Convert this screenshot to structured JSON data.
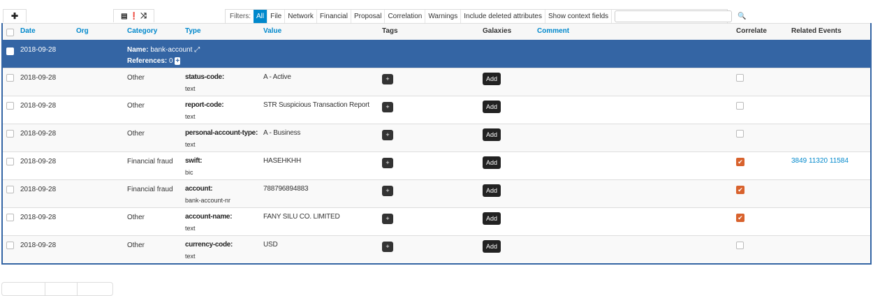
{
  "toolbar": {
    "add_icon": "plus-icon",
    "icons": [
      "list-icon",
      "exclamation-circle-icon",
      "random-icon"
    ]
  },
  "filters": {
    "label": "Filters:",
    "items": [
      "All",
      "File",
      "Network",
      "Financial",
      "Proposal",
      "Correlation",
      "Warnings",
      "Include deleted attributes",
      "Show context fields"
    ],
    "active": "All",
    "search_value": ""
  },
  "columns": {
    "date": "Date",
    "org": "Org",
    "category": "Category",
    "type": "Type",
    "value": "Value",
    "tags": "Tags",
    "galaxies": "Galaxies",
    "comment": "Comment",
    "correlate": "Correlate",
    "related": "Related Events"
  },
  "object": {
    "date": "2018-09-28",
    "name_label": "Name:",
    "name": "bank-account",
    "refs_label": "References:",
    "refs": "0"
  },
  "rows": [
    {
      "date": "2018-09-28",
      "category": "Other",
      "type": "status-code:",
      "subtype": "text",
      "value": "A - Active",
      "correlate": false,
      "related": ""
    },
    {
      "date": "2018-09-28",
      "category": "Other",
      "type": "report-code:",
      "subtype": "text",
      "value": "STR Suspicious Transaction Report",
      "correlate": false,
      "related": ""
    },
    {
      "date": "2018-09-28",
      "category": "Other",
      "type": "personal-account-type:",
      "subtype": "text",
      "value": "A - Business",
      "correlate": false,
      "related": ""
    },
    {
      "date": "2018-09-28",
      "category": "Financial fraud",
      "type": "swift:",
      "subtype": "bic",
      "value": "HASEHKHH",
      "correlate": true,
      "related": "3849 11320 11584"
    },
    {
      "date": "2018-09-28",
      "category": "Financial fraud",
      "type": "account:",
      "subtype": "bank-account-nr",
      "value": "788796894883",
      "correlate": true,
      "related": ""
    },
    {
      "date": "2018-09-28",
      "category": "Other",
      "type": "account-name:",
      "subtype": "text",
      "value": "FANY SILU CO. LIMITED",
      "correlate": true,
      "related": ""
    },
    {
      "date": "2018-09-28",
      "category": "Other",
      "type": "currency-code:",
      "subtype": "text",
      "value": "USD",
      "correlate": false,
      "related": ""
    }
  ],
  "buttons": {
    "tag_add": "+",
    "galaxy_add": "Add"
  },
  "colors": {
    "accent": "#0088cc",
    "object_row": "#3465a4",
    "correlate_checked": "#d8622d"
  }
}
